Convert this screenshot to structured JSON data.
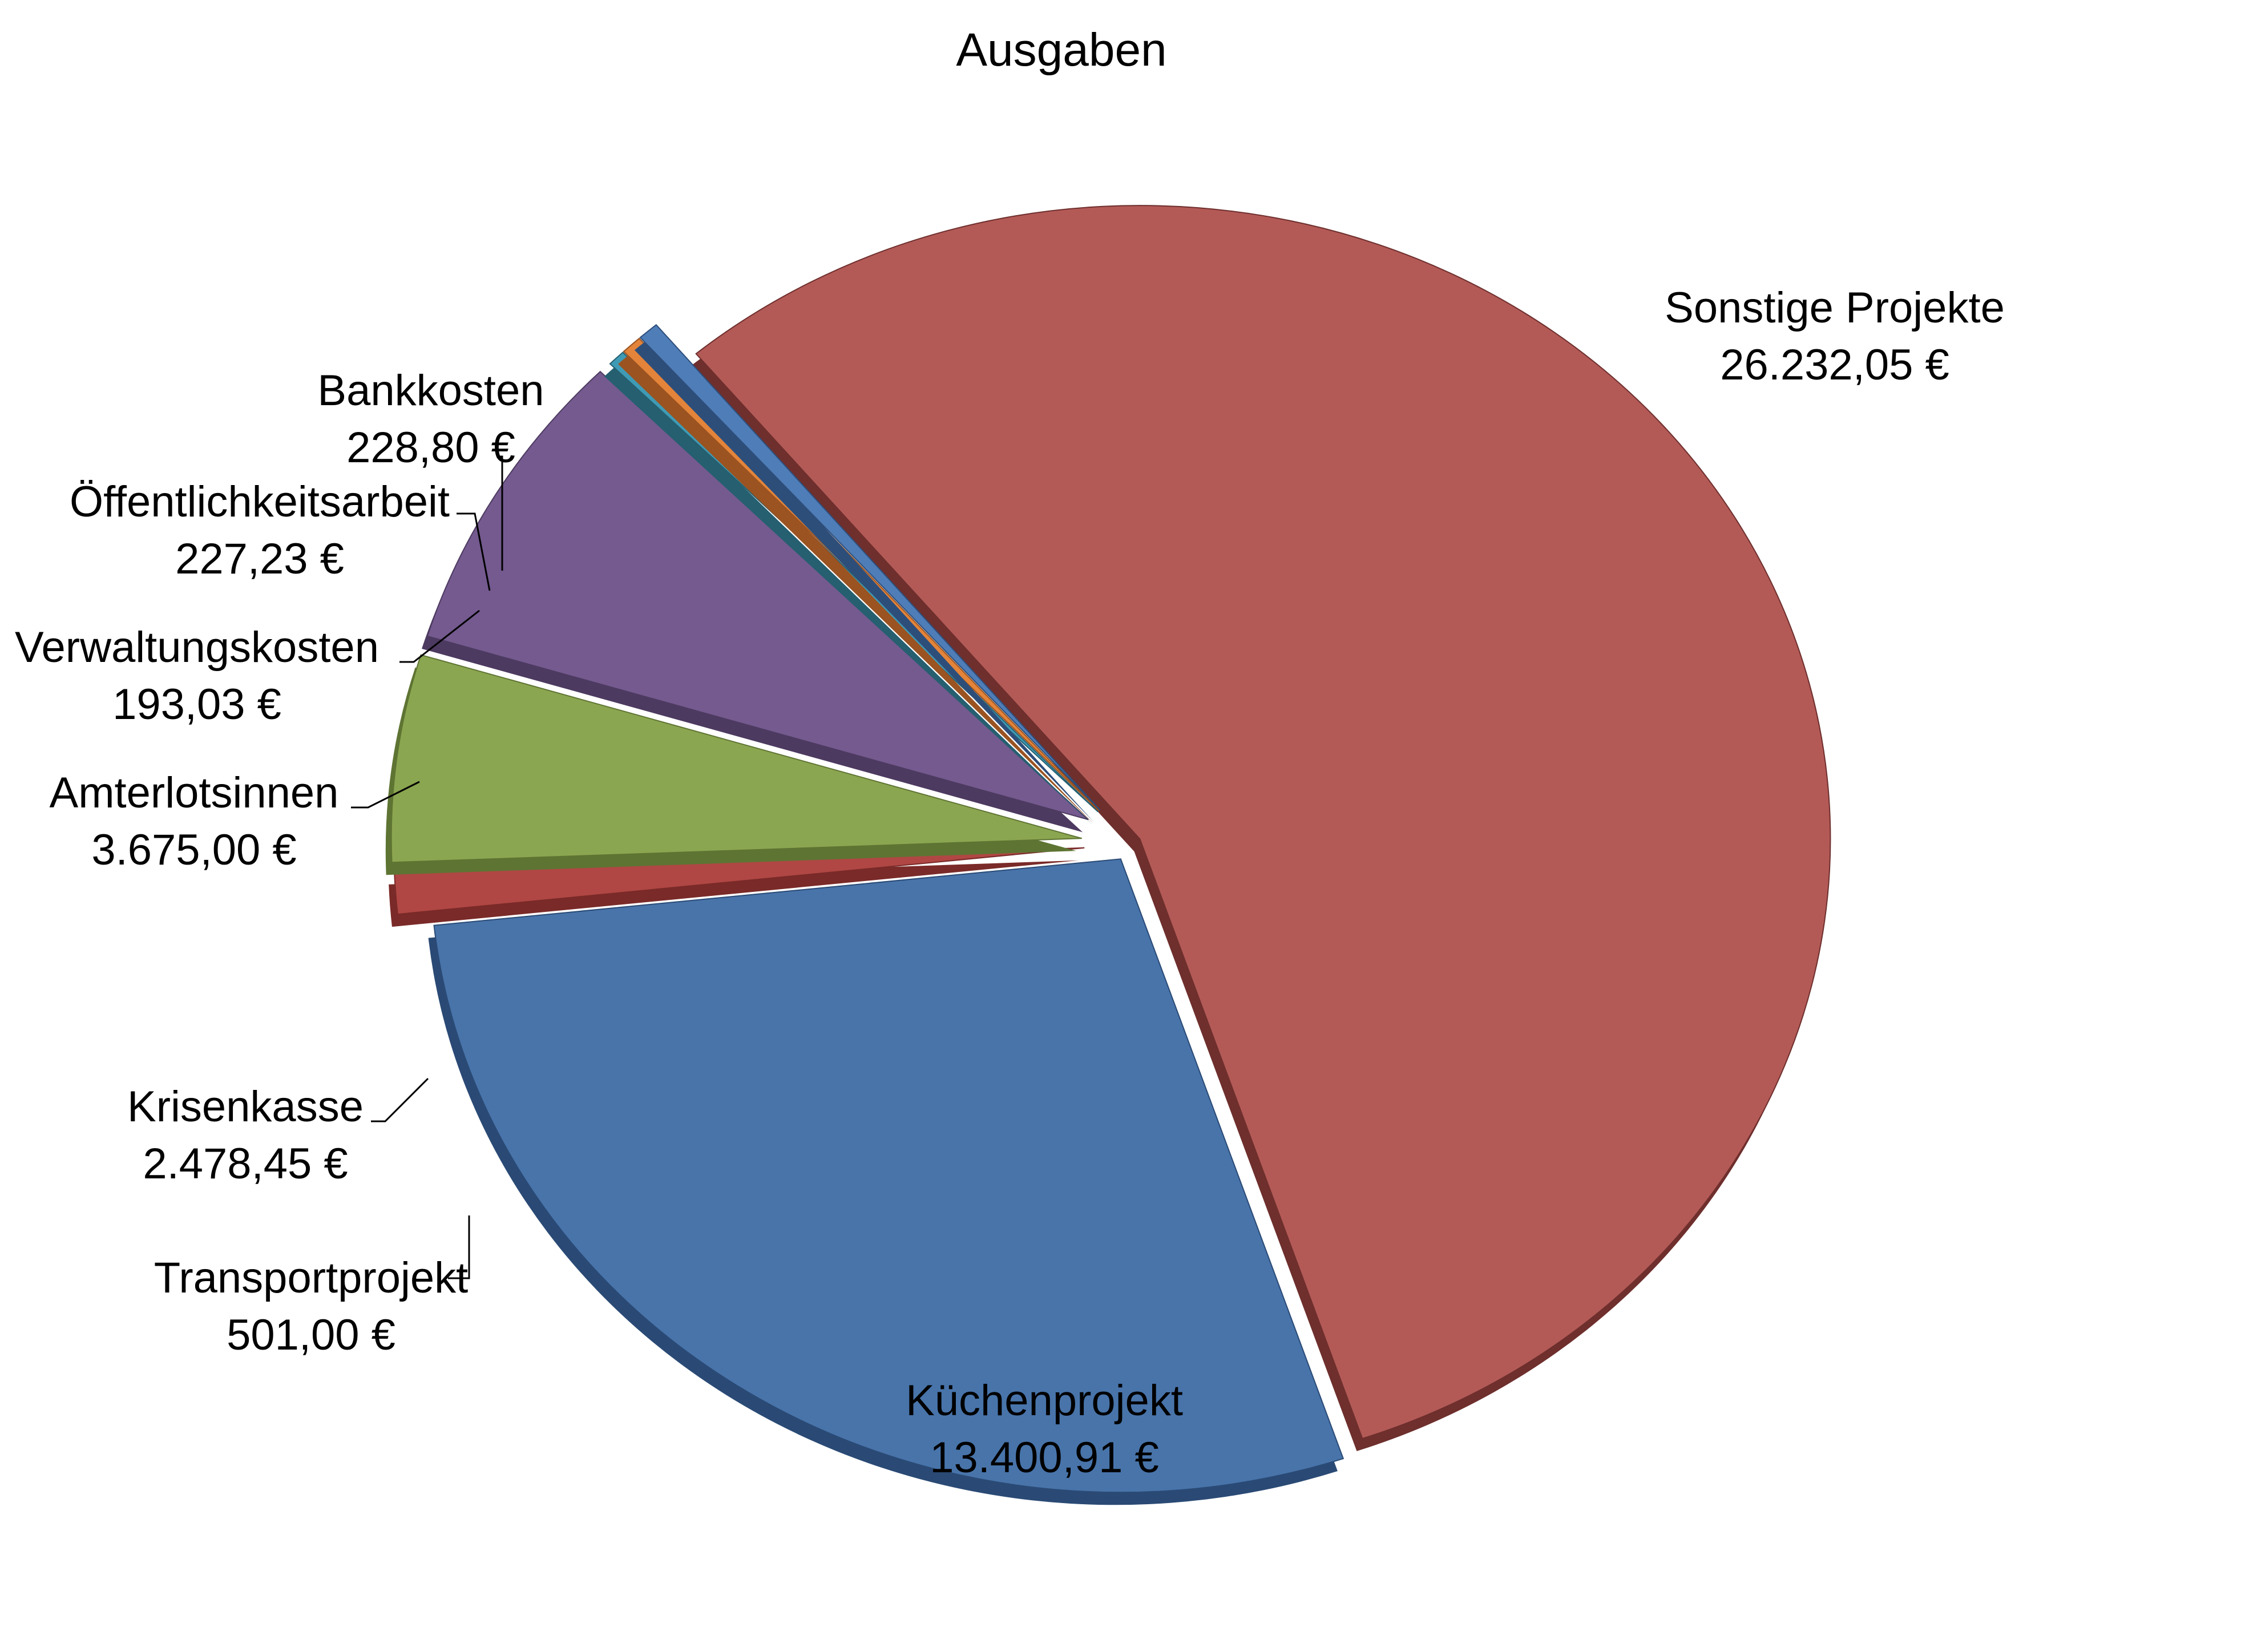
{
  "chart_data": {
    "type": "pie",
    "title": "Ausgaben",
    "exploded": true,
    "style": "3d",
    "slices": [
      {
        "name": "Sonstige Projekte",
        "value": 26232.05,
        "value_label": "26.232,05 €",
        "color": "#B35A57",
        "side": "#6E2F2D"
      },
      {
        "name": "Küchenprojekt",
        "value": 13400.91,
        "value_label": "13.400,91 €",
        "color": "#4874AA",
        "side": "#2A4A75"
      },
      {
        "name": "Transportprojekt",
        "value": 501.0,
        "value_label": "501,00 €",
        "color": "#B04744",
        "side": "#7A2A28"
      },
      {
        "name": "Krisenkasse",
        "value": 2478.45,
        "value_label": "2.478,45 €",
        "color": "#8BA650",
        "side": "#5E7433"
      },
      {
        "name": "Amterlotsinnen",
        "value": 3675.0,
        "value_label": "3.675,00 €",
        "color": "#745A8F",
        "side": "#4D3A60"
      },
      {
        "name": "Verwaltungskosten",
        "value": 193.03,
        "value_label": "193,03 €",
        "color": "#3F9BB5",
        "side": "#255F70"
      },
      {
        "name": "Öffentlichkeitsarbeit",
        "value": 227.23,
        "value_label": "227,23 €",
        "color": "#E3843A",
        "side": "#9A5321"
      },
      {
        "name": "Bankkosten",
        "value": 228.8,
        "value_label": "228,80 €",
        "color": "#4F7DB8",
        "side": "#2E4E7A"
      }
    ]
  }
}
